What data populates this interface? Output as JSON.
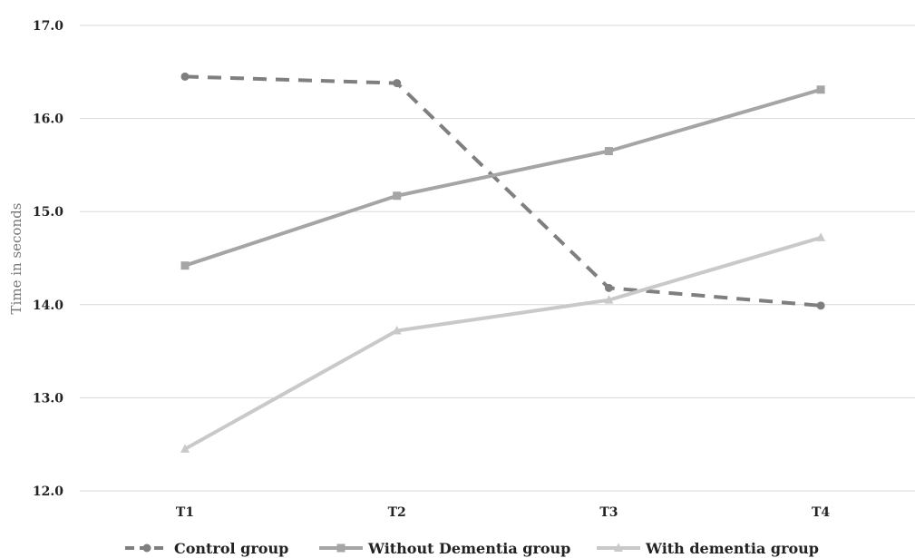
{
  "chart_data": {
    "type": "line",
    "categories": [
      "T1",
      "T2",
      "T3",
      "T4"
    ],
    "ylabel": "Time in seconds",
    "ylim": [
      12.0,
      17.0
    ],
    "yticks": [
      "12.0",
      "13.0",
      "14.0",
      "15.0",
      "16.0",
      "17.0"
    ],
    "grid": true,
    "legend_position": "bottom",
    "series": [
      {
        "name": "Control group",
        "values": [
          16.45,
          16.38,
          14.18,
          13.99
        ],
        "color": "#7f7f7f",
        "dash": "dashed",
        "marker": "circle"
      },
      {
        "name": "Without Dementia group",
        "values": [
          14.42,
          15.17,
          15.65,
          16.31
        ],
        "color": "#a5a5a5",
        "dash": "solid",
        "marker": "square"
      },
      {
        "name": "With dementia group",
        "values": [
          12.45,
          13.72,
          14.05,
          14.72
        ],
        "color": "#c9c9c9",
        "dash": "solid",
        "marker": "triangle"
      }
    ]
  }
}
